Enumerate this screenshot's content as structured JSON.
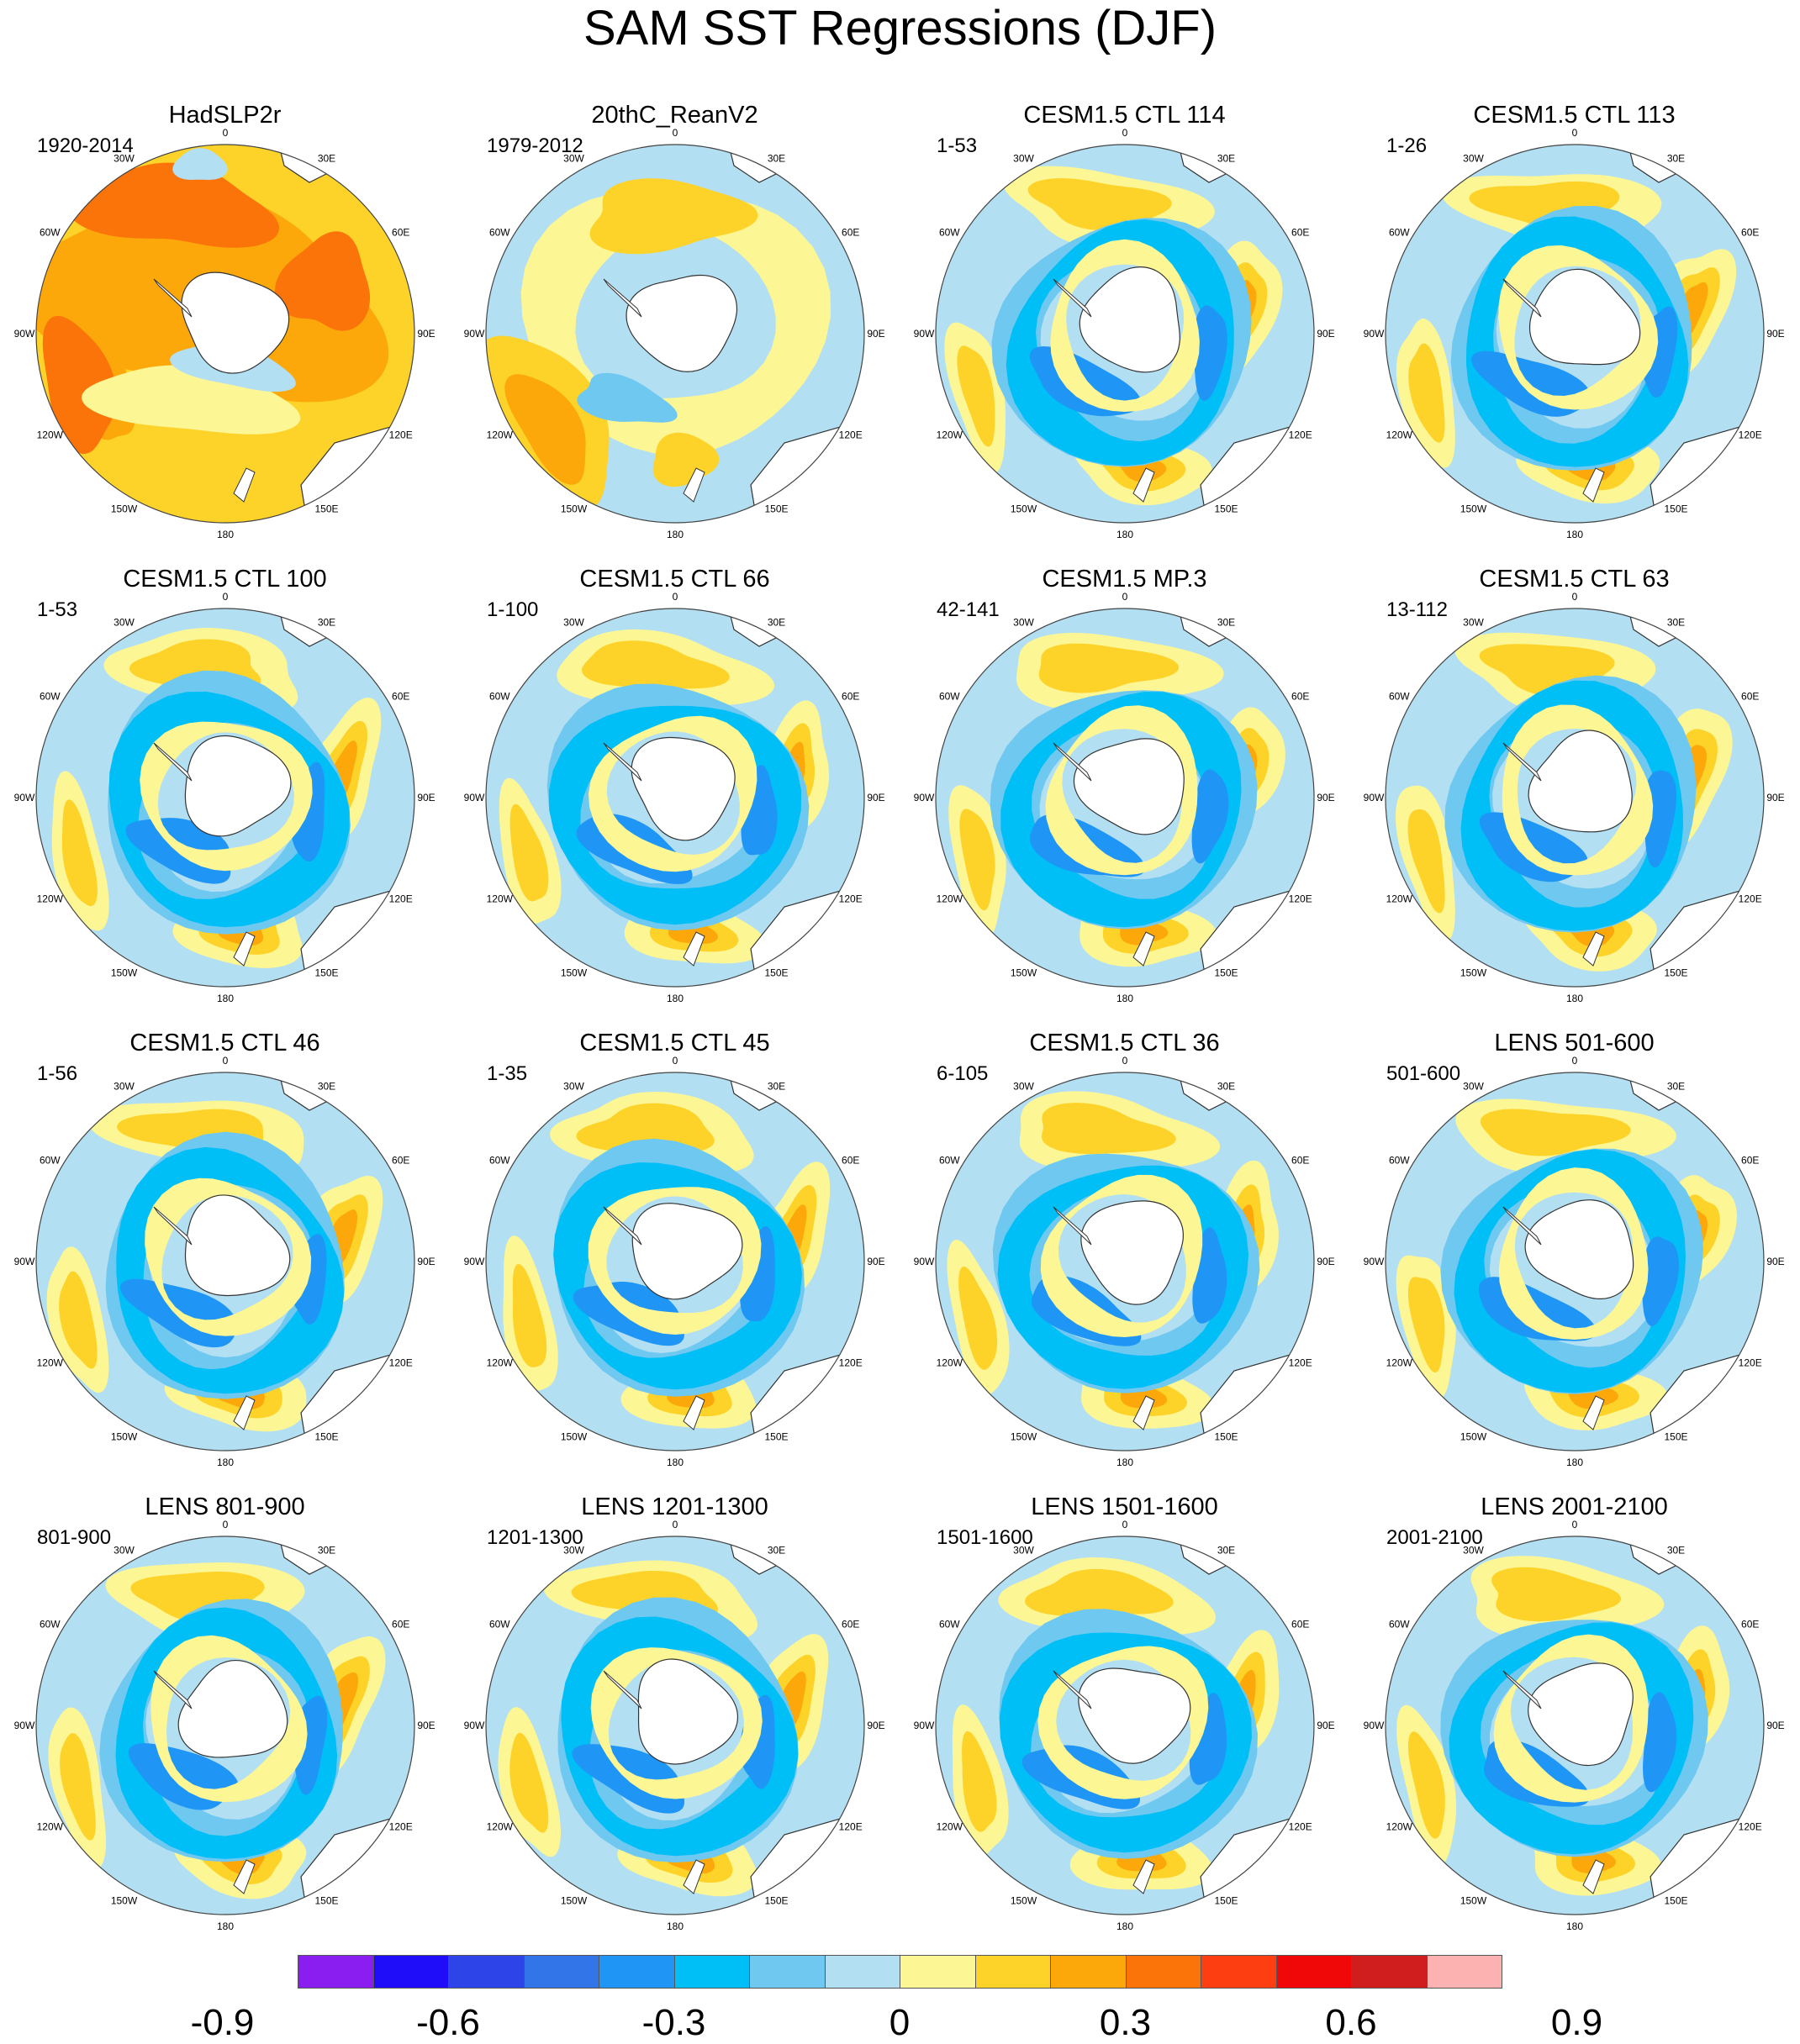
{
  "title": "SAM SST Regressions (DJF)",
  "lon_labels": [
    "0",
    "30E",
    "60E",
    "90E",
    "120E",
    "150E",
    "180",
    "150W",
    "120W",
    "90W",
    "60W",
    "30W"
  ],
  "panels": [
    {
      "title": "HadSLP2r",
      "period": "1920-2014",
      "style": "pos"
    },
    {
      "title": "20thC_ReanV2",
      "period": "1979-2012",
      "style": "mixed"
    },
    {
      "title": "CESM1.5 CTL 114",
      "period": "1-53",
      "style": "ring"
    },
    {
      "title": "CESM1.5 CTL 113",
      "period": "1-26",
      "style": "ring"
    },
    {
      "title": "CESM1.5 CTL 100",
      "period": "1-53",
      "style": "ring"
    },
    {
      "title": "CESM1.5 CTL 66",
      "period": "1-100",
      "style": "ring"
    },
    {
      "title": "CESM1.5 MP.3",
      "period": "42-141",
      "style": "ring"
    },
    {
      "title": "CESM1.5 CTL 63",
      "period": "13-112",
      "style": "ring"
    },
    {
      "title": "CESM1.5 CTL 46",
      "period": "1-56",
      "style": "ring"
    },
    {
      "title": "CESM1.5 CTL 45",
      "period": "1-35",
      "style": "ring"
    },
    {
      "title": "CESM1.5 CTL 36",
      "period": "6-105",
      "style": "ring"
    },
    {
      "title": "LENS 501-600",
      "period": "501-600",
      "style": "ring"
    },
    {
      "title": "LENS 801-900",
      "period": "801-900",
      "style": "ring"
    },
    {
      "title": "LENS 1201-1300",
      "period": "1201-1300",
      "style": "ring"
    },
    {
      "title": "LENS 1501-1600",
      "period": "1501-1600",
      "style": "ring"
    },
    {
      "title": "LENS 2001-2100",
      "period": "2001-2100",
      "style": "ring"
    }
  ],
  "colorbar": {
    "colors": [
      "#8a1ef0",
      "#1f0dfa",
      "#2c44e8",
      "#3275e8",
      "#1f96f5",
      "#00bff6",
      "#6fc8f0",
      "#b3dff3",
      "#fdf694",
      "#fdd32a",
      "#fca80a",
      "#fb740a",
      "#fc3e10",
      "#f00808",
      "#d01e1e",
      "#fdb2b2"
    ],
    "tick_labels": [
      "-0.9",
      "-0.6",
      "-0.3",
      "0",
      "0.3",
      "0.6",
      "0.9"
    ],
    "tick_values": [
      -0.9,
      -0.6,
      -0.3,
      0,
      0.3,
      0.6,
      0.9
    ]
  }
}
